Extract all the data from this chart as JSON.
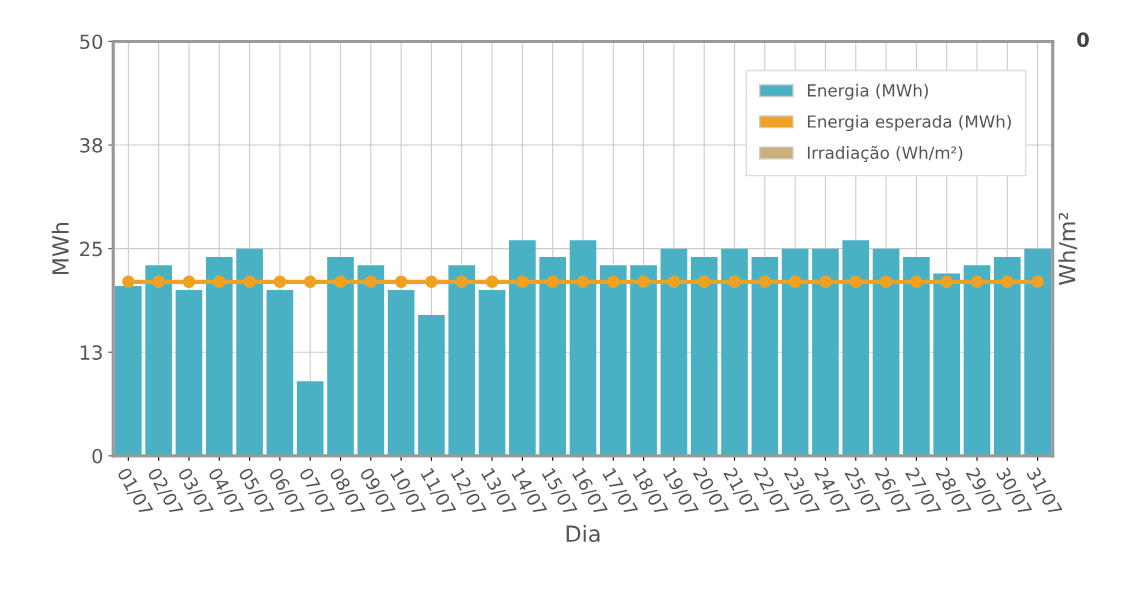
{
  "chart_data": {
    "type": "bar",
    "xlabel": "Dia",
    "ylabel": "MWh",
    "y2label": "Wh/m²",
    "categories": [
      "01/07",
      "02/07",
      "03/07",
      "04/07",
      "05/07",
      "06/07",
      "07/07",
      "08/07",
      "09/07",
      "10/07",
      "11/07",
      "12/07",
      "13/07",
      "14/07",
      "15/07",
      "16/07",
      "17/07",
      "18/07",
      "19/07",
      "20/07",
      "21/07",
      "22/07",
      "23/07",
      "24/07",
      "25/07",
      "26/07",
      "27/07",
      "28/07",
      "29/07",
      "30/07",
      "31/07"
    ],
    "series": [
      {
        "name": "Energia (MWh)",
        "color": "#4ab0c4",
        "values": [
          20.5,
          23,
          20,
          24,
          25,
          20,
          9,
          24,
          23,
          20,
          17,
          23,
          20,
          26,
          24,
          26,
          23,
          23,
          25,
          24,
          25,
          24,
          25,
          25,
          26,
          25,
          24,
          22,
          23,
          24,
          25
        ]
      },
      {
        "name": "Energia esperada (MWh)",
        "type": "line",
        "color": "#eea224",
        "marker": "circle",
        "values": [
          21,
          21,
          21,
          21,
          21,
          21,
          21,
          21,
          21,
          21,
          21,
          21,
          21,
          21,
          21,
          21,
          21,
          21,
          21,
          21,
          21,
          21,
          21,
          21,
          21,
          21,
          21,
          21,
          21,
          21,
          21
        ]
      },
      {
        "name": "Irradiação (Wh/m²)",
        "type": "line",
        "color": "#c8b27a",
        "values": [
          null,
          null,
          null,
          null,
          null,
          null,
          null,
          null,
          null,
          null,
          null,
          null,
          null,
          null,
          null,
          null,
          null,
          null,
          null,
          null,
          null,
          null,
          null,
          null,
          null,
          null,
          null,
          null,
          null,
          null,
          null
        ]
      }
    ],
    "ylim": [
      0,
      50
    ],
    "yticks": [
      0,
      {
        "value": 12.5,
        "label": "13"
      },
      25,
      {
        "value": 37.5,
        "label": "38"
      },
      50
    ],
    "annotations": [
      "0"
    ],
    "grid": true,
    "legend": "top right"
  }
}
